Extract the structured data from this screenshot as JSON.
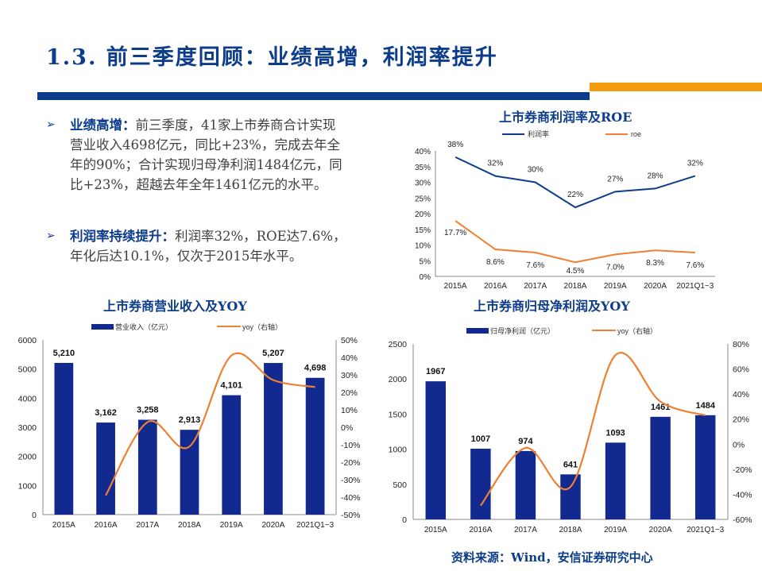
{
  "title": "1.3. 前三季度回顾：业绩高增，利润率提升",
  "bullets": [
    {
      "head": "业绩高增：",
      "text": "前三季度，41家上市券商合计实现营业收入4698亿元，同比+23%，完成去年全年的90%；合计实现归母净利润1484亿元，同比+23%，超越去年全年1461亿元的水平。"
    },
    {
      "head": "利润率持续提升：",
      "text": "利润率32%，ROE达7.6%，年化后达10.1%，仅次于2015年水平。"
    }
  ],
  "source": "资料来源：Wind，安信证券研究中心",
  "colors": {
    "brand": "#0d3d8a",
    "bar": "#12298f",
    "line_orange": "#ee8033",
    "accent_orange": "#f39c12"
  },
  "chart_data": [
    {
      "type": "line",
      "title": "上市券商利润率及ROE",
      "categories": [
        "2015A",
        "2016A",
        "2017A",
        "2018A",
        "2019A",
        "2020A",
        "2021Q1~3"
      ],
      "ylim": [
        0,
        40
      ],
      "yticks": [
        "0%",
        "5%",
        "10%",
        "15%",
        "20%",
        "25%",
        "30%",
        "35%",
        "40%"
      ],
      "series": [
        {
          "name": "利润率",
          "values": [
            38,
            32,
            30,
            22,
            27,
            28,
            32
          ],
          "labels": [
            "38%",
            "32%",
            "30%",
            "22%",
            "27%",
            "28%",
            "32%"
          ]
        },
        {
          "name": "roe",
          "values": [
            17.7,
            8.6,
            7.6,
            4.5,
            7.0,
            8.3,
            7.6
          ],
          "labels": [
            "17.7%",
            "8.6%",
            "7.6%",
            "4.5%",
            "7.0%",
            "8.3%",
            "7.6%"
          ]
        }
      ],
      "legend": "top"
    },
    {
      "type": "bar+line",
      "title": "上市券商营业收入及YOY",
      "categories": [
        "2015A",
        "2016A",
        "2017A",
        "2018A",
        "2019A",
        "2020A",
        "2021Q1~3"
      ],
      "ylim": [
        0,
        6000
      ],
      "yticks": [
        "0",
        "1000",
        "2000",
        "3000",
        "4000",
        "5000",
        "6000"
      ],
      "y2lim": [
        -50,
        50
      ],
      "y2ticks": [
        "-50%",
        "-40%",
        "-30%",
        "-20%",
        "-10%",
        "0%",
        "10%",
        "20%",
        "30%",
        "40%",
        "50%"
      ],
      "series": [
        {
          "name": "营业收入（亿元）",
          "values": [
            5210,
            3162,
            3258,
            2913,
            4101,
            5207,
            4698
          ],
          "labels": [
            "5,210",
            "3,162",
            "3,258",
            "2,913",
            "4,101",
            "5,207",
            "4,698"
          ]
        },
        {
          "name": "yoy（右轴）",
          "values": [
            null,
            -39,
            3,
            -11,
            41,
            27,
            23
          ]
        }
      ],
      "legend": "top"
    },
    {
      "type": "bar+line",
      "title": "上市券商归母净利润及YOY",
      "categories": [
        "2015A",
        "2016A",
        "2017A",
        "2018A",
        "2019A",
        "2020A",
        "2021Q1~3"
      ],
      "ylim": [
        0,
        2500
      ],
      "yticks": [
        "0",
        "500",
        "1000",
        "1500",
        "2000",
        "2500"
      ],
      "y2lim": [
        -60,
        80
      ],
      "y2ticks": [
        "-60%",
        "-40%",
        "-20%",
        "0%",
        "20%",
        "40%",
        "60%",
        "80%"
      ],
      "series": [
        {
          "name": "归母净利润（亿元）",
          "values": [
            1967,
            1007,
            974,
            641,
            1093,
            1461,
            1484
          ],
          "labels": [
            "1967",
            "1007",
            "974",
            "641",
            "1093",
            "1461",
            "1484"
          ]
        },
        {
          "name": "yoy（右轴）",
          "values": [
            null,
            -49,
            -3,
            -34,
            71,
            34,
            23
          ]
        }
      ],
      "legend": "top"
    }
  ]
}
